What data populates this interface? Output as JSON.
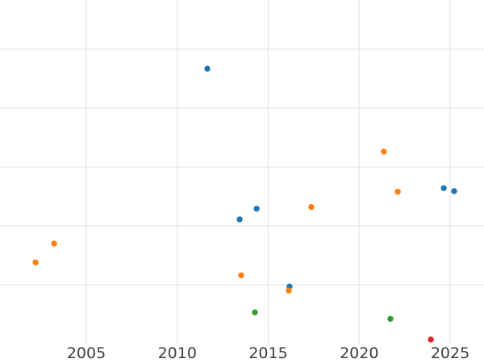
{
  "chart_data": {
    "type": "scatter",
    "title": "",
    "xlabel": "",
    "ylabel": "",
    "grid": true,
    "legend": null,
    "x_axis": {
      "ticks": [
        2005,
        2010,
        2015,
        2020,
        2025
      ],
      "range": [
        2000.26,
        2026.86
      ]
    },
    "y_axis": {
      "labels_visible": false,
      "gridline_values": [
        1,
        2,
        3,
        4,
        5
      ],
      "range": [
        0,
        5.84
      ]
    },
    "marker_radius_px": 3.7,
    "series": [
      {
        "name": "series-blue",
        "color": "#1f77b4",
        "points": [
          {
            "x": 2011.65,
            "y": 4.67
          },
          {
            "x": 2013.43,
            "y": 2.11
          },
          {
            "x": 2014.36,
            "y": 2.29
          },
          {
            "x": 2016.17,
            "y": 0.97
          },
          {
            "x": 2024.65,
            "y": 2.64
          },
          {
            "x": 2025.22,
            "y": 2.59
          }
        ]
      },
      {
        "name": "series-orange",
        "color": "#ff7f0e",
        "points": [
          {
            "x": 2002.21,
            "y": 1.38
          },
          {
            "x": 2003.23,
            "y": 1.7
          },
          {
            "x": 2013.51,
            "y": 1.16
          },
          {
            "x": 2016.13,
            "y": 0.9
          },
          {
            "x": 2017.37,
            "y": 2.32
          },
          {
            "x": 2021.36,
            "y": 3.26
          },
          {
            "x": 2022.12,
            "y": 2.58
          }
        ]
      },
      {
        "name": "series-green",
        "color": "#2ca02c",
        "points": [
          {
            "x": 2014.27,
            "y": 0.53
          },
          {
            "x": 2021.72,
            "y": 0.42
          }
        ]
      },
      {
        "name": "series-red",
        "color": "#d62728",
        "points": [
          {
            "x": 2023.94,
            "y": 0.07
          }
        ]
      }
    ]
  },
  "colors": {
    "background": "#ffffff",
    "gridline": "#e7e7e7",
    "tick_label": "#3d3d3d"
  }
}
